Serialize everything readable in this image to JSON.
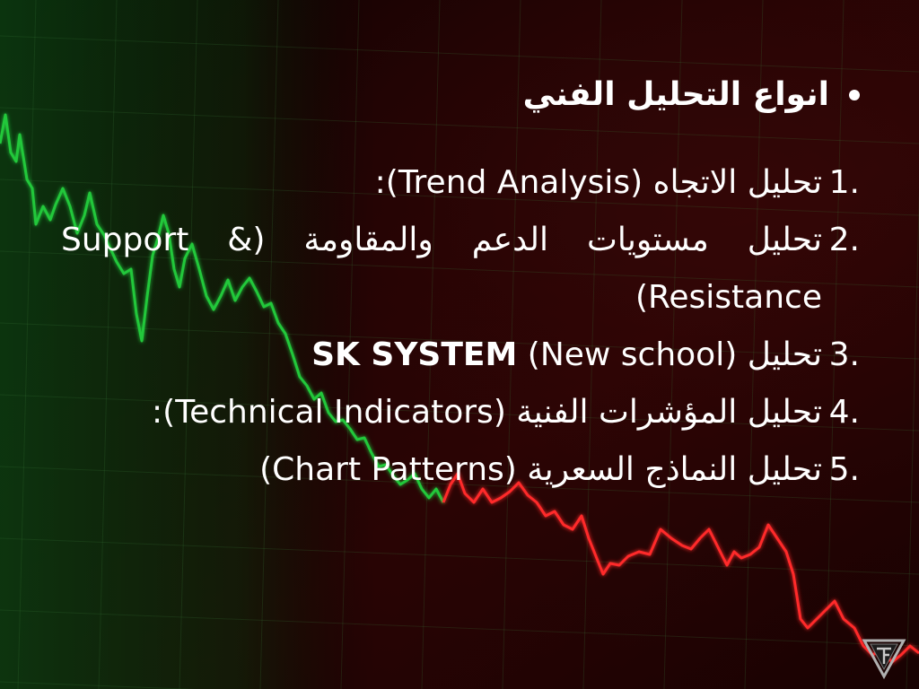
{
  "slide": {
    "heading": "انواع التحليل الفني",
    "items": [
      {
        "number": "1.",
        "text": "تحليل الاتجاه (Trend Analysis):"
      },
      {
        "number": "2.",
        "text": "تحليل مستويات الدعم والمقاومة (Support & Resistance)"
      },
      {
        "number": "3.",
        "text_before": "تحليل ",
        "text_bold": "SK SYSTEM",
        "text_after": " (New school)"
      },
      {
        "number": "4.",
        "text": "تحليل المؤشرات الفنية (Technical Indicators):"
      },
      {
        "number": "5.",
        "text": "تحليل النماذج السعرية (Chart Patterns)"
      }
    ]
  },
  "logo": {
    "icon": "triangle-tf-logo"
  },
  "colors": {
    "text": "#ffffff",
    "uptrend_line": "#22c83a",
    "downtrend_line": "#ff2a2a",
    "background": "#0a0000"
  }
}
